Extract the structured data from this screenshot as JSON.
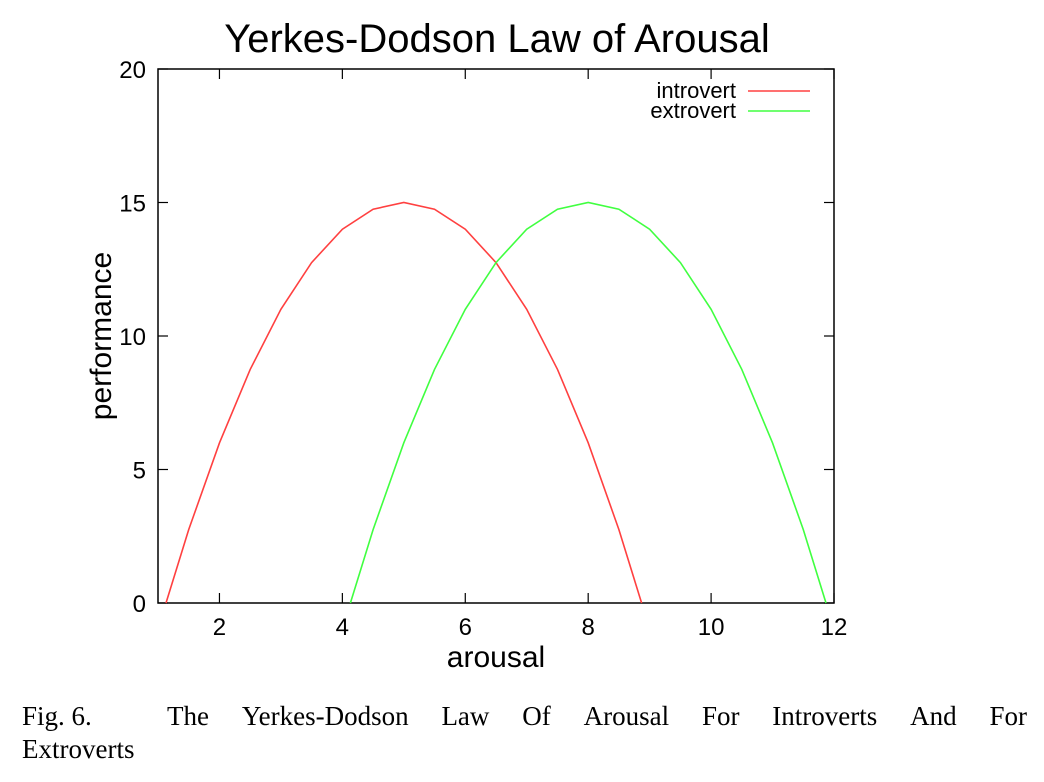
{
  "chart_data": {
    "type": "line",
    "title": "Yerkes-Dodson Law of Arousal",
    "xlabel": "arousal",
    "ylabel": "performance",
    "xlim": [
      1,
      12
    ],
    "ylim": [
      0,
      20
    ],
    "x_ticks": [
      "2",
      "4",
      "6",
      "8",
      "10",
      "12"
    ],
    "y_ticks": [
      "0",
      "5",
      "10",
      "15",
      "20"
    ],
    "grid": false,
    "legend_position": "top-right",
    "series": [
      {
        "name": "introvert",
        "color": "#ff4040",
        "x": [
          1.13,
          1.5,
          2,
          2.5,
          3,
          3.5,
          4,
          4.5,
          5,
          5.5,
          6,
          6.5,
          7,
          7.5,
          8,
          8.5,
          8.87
        ],
        "y": [
          0,
          2.75,
          6,
          8.75,
          11,
          12.75,
          14,
          14.75,
          15,
          14.75,
          14,
          12.75,
          11,
          8.75,
          6,
          2.75,
          0
        ]
      },
      {
        "name": "extrovert",
        "color": "#40ff40",
        "x": [
          4.13,
          4.5,
          5,
          5.5,
          6,
          6.5,
          7,
          7.5,
          8,
          8.5,
          9,
          9.5,
          10,
          10.5,
          11,
          11.5,
          11.87
        ],
        "y": [
          0,
          2.75,
          6,
          8.75,
          11,
          12.75,
          14,
          14.75,
          15,
          14.75,
          14,
          12.75,
          11,
          8.75,
          6,
          2.75,
          0
        ]
      }
    ]
  },
  "caption": {
    "label": "Fig. 6.",
    "words": [
      "The",
      "Yerkes-Dodson",
      "Law",
      "Of",
      "Arousal",
      "For",
      "Introverts",
      "And",
      "For"
    ],
    "line2": "Extroverts"
  }
}
